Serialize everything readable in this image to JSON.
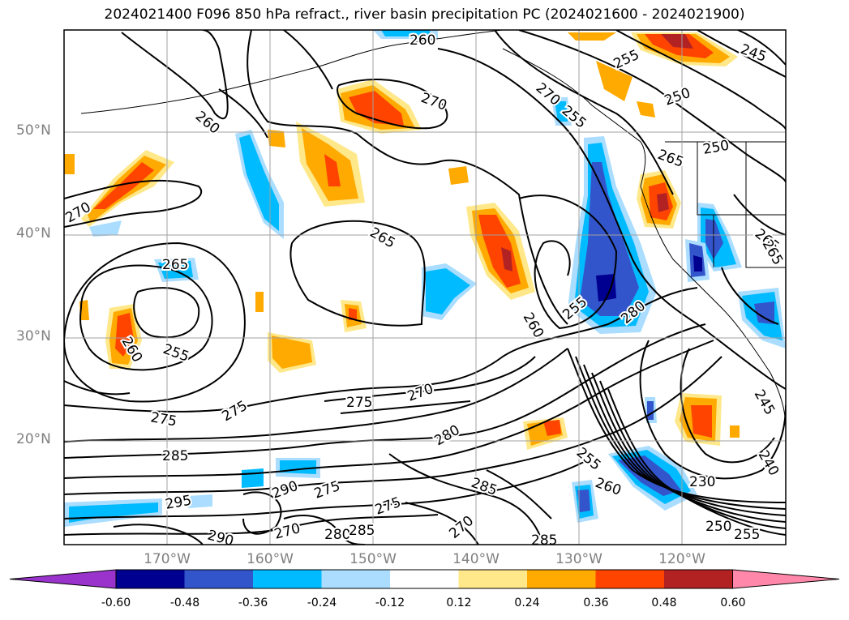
{
  "title": "2024021400 F096 850 hPa refract., river basin precipitation PC (2024021600 - 2024021900)",
  "lat_labels": [
    "50°N",
    "40°N",
    "30°N",
    "20°N"
  ],
  "lon_labels": [
    "170°W",
    "160°W",
    "150°W",
    "140°W",
    "130°W",
    "120°W"
  ],
  "colorbar": {
    "ticks": [
      "-0.60",
      "-0.48",
      "-0.36",
      "-0.24",
      "-0.12",
      "0.12",
      "0.24",
      "0.36",
      "0.48",
      "0.60"
    ],
    "colors": [
      "#9933cc",
      "#000090",
      "#3355cc",
      "#00bbff",
      "#aaddff",
      "#ffffff",
      "#ffe88a",
      "#ffaa00",
      "#ff4400",
      "#b22222",
      "#ff88aa"
    ]
  },
  "contour_labels": [
    "260",
    "270",
    "255",
    "245",
    "250",
    "270",
    "260",
    "255",
    "265",
    "250",
    "270",
    "265",
    "265",
    "265",
    "260",
    "255",
    "260",
    "255",
    "280",
    "275",
    "270",
    "275",
    "275",
    "280",
    "285",
    "285",
    "295",
    "290",
    "275",
    "275",
    "255",
    "260",
    "230",
    "285",
    "290",
    "270",
    "280",
    "285",
    "270",
    "255",
    "250",
    "240",
    "265",
    "245"
  ],
  "colors": {
    "title_text": "#000000",
    "axis_label": "#808080",
    "contour": "#000000",
    "grid": "#a0a0a0"
  }
}
